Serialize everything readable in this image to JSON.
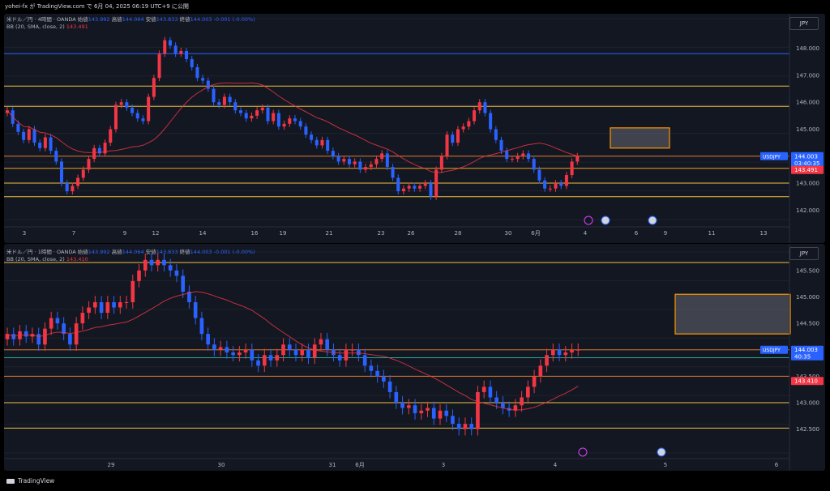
{
  "header": {
    "title": "yohei-fx が TradingView.com で 6月 04, 2025 06:19 UTC+9 に公開"
  },
  "footer": {
    "brand": "TradingView"
  },
  "chart_data": [
    {
      "type": "candlestick",
      "legend": {
        "symbol": "米ドル／円 · 4時間 · OANDA",
        "open_label": "始値",
        "open": "143.992",
        "high_label": "高値",
        "high": "144.064",
        "low_label": "安値",
        "low": "143.833",
        "close_label": "終値",
        "close": "144.003",
        "change": "-0.001 (-0.00%)",
        "bb_label": "BB (20, SMA, close, 2)",
        "bb_value": "143.491"
      },
      "currency": "JPY",
      "y_ticks": [
        148.0,
        147.0,
        146.0,
        145.0,
        143.0,
        142.0
      ],
      "y_tick_labels": [
        "148.000",
        "147.000",
        "146.000",
        "145.000",
        "143.000",
        "142.000"
      ],
      "ylim": [
        141.65,
        149.1
      ],
      "x_ticks": [
        "3",
        "7",
        "9",
        "12",
        "14",
        "16",
        "19",
        "21",
        "23",
        "26",
        "28",
        "30",
        "6月",
        "4",
        "6",
        "9",
        "11",
        "13"
      ],
      "price_label": {
        "symbol": "USDJPY",
        "price": "144.003",
        "countdown": "03:40:35",
        "bb": "143.491"
      },
      "horizontal_lines": [
        {
          "price": 147.8,
          "color": "#2962ff"
        },
        {
          "price": 146.6,
          "color": "#f0c040"
        },
        {
          "price": 145.85,
          "color": "#f0c040"
        },
        {
          "price": 144.0,
          "color": "#e07a30"
        },
        {
          "price": 143.55,
          "color": "#f0a020"
        },
        {
          "price": 143.0,
          "color": "#f0c040"
        },
        {
          "price": 142.5,
          "color": "#f0c040"
        }
      ],
      "target_zone": {
        "price_high": 145.05,
        "price_low": 144.3
      },
      "closes": [
        145.7,
        145.2,
        144.9,
        144.6,
        145.0,
        144.5,
        144.3,
        144.7,
        144.2,
        143.8,
        143.0,
        142.7,
        142.9,
        143.2,
        143.5,
        143.9,
        144.3,
        144.1,
        144.5,
        145.0,
        145.9,
        146.0,
        145.8,
        145.6,
        145.4,
        145.3,
        146.2,
        146.9,
        147.8,
        148.3,
        148.1,
        147.8,
        147.9,
        147.6,
        147.3,
        146.9,
        146.8,
        146.5,
        146.0,
        145.9,
        146.2,
        146.0,
        145.7,
        145.6,
        145.4,
        145.5,
        145.7,
        145.8,
        145.3,
        145.6,
        145.1,
        145.2,
        145.4,
        145.3,
        145.1,
        144.8,
        144.6,
        144.4,
        144.6,
        144.2,
        144.0,
        143.8,
        143.9,
        143.7,
        143.8,
        143.5,
        143.6,
        143.7,
        143.9,
        144.1,
        143.6,
        143.2,
        142.7,
        142.8,
        142.9,
        142.8,
        142.9,
        143.0,
        142.5,
        143.5,
        144.0,
        144.8,
        144.5,
        145.0,
        145.1,
        145.3,
        145.7,
        146.0,
        145.6,
        145.0,
        144.6,
        144.2,
        143.9,
        143.9,
        144.0,
        144.1,
        143.9,
        143.5,
        143.1,
        142.8,
        142.8,
        143.0,
        142.9,
        143.3,
        143.8,
        144.0
      ]
    },
    {
      "type": "candlestick",
      "legend": {
        "symbol": "米ドル／円 · 1時間 · OANDA",
        "open_label": "始値",
        "open": "143.992",
        "high_label": "高値",
        "high": "144.064",
        "low_label": "安値",
        "low": "143.833",
        "close_label": "終値",
        "close": "144.003",
        "change": "-0.001 (-0.00%)",
        "bb_label": "BB (20, SMA, close, 2)",
        "bb_value": "143.410"
      },
      "currency": "JPY",
      "y_ticks": [
        145.5,
        145.0,
        144.5,
        143.5,
        143.0,
        142.5
      ],
      "y_tick_labels": [
        "145.500",
        "145.000",
        "144.500",
        "143.500",
        "143.000",
        "142.500"
      ],
      "ylim": [
        142.05,
        145.85
      ],
      "x_ticks": [
        "29",
        "30",
        "31",
        "6月",
        "3",
        "4",
        "5",
        "6"
      ],
      "price_label": {
        "symbol": "USDJPY",
        "price": "144.003",
        "countdown": "40:35",
        "bb": "143.410"
      },
      "horizontal_lines": [
        {
          "price": 145.65,
          "color": "#f0c040"
        },
        {
          "price": 144.0,
          "color": "#e07a30"
        },
        {
          "price": 143.85,
          "color": "#26a69a"
        },
        {
          "price": 143.5,
          "color": "#e07a30"
        },
        {
          "price": 143.0,
          "color": "#f0c040"
        },
        {
          "price": 142.52,
          "color": "#f0c040"
        }
      ],
      "target_zone": {
        "price_high": 145.05,
        "price_low": 144.3
      },
      "closes": [
        144.3,
        144.2,
        144.35,
        144.25,
        144.3,
        144.1,
        144.4,
        144.6,
        144.5,
        144.3,
        144.1,
        144.5,
        144.7,
        144.8,
        144.9,
        144.7,
        144.9,
        144.8,
        144.9,
        144.9,
        145.3,
        145.5,
        145.7,
        145.6,
        145.7,
        145.6,
        145.5,
        145.4,
        145.1,
        144.9,
        144.6,
        144.3,
        144.1,
        144.0,
        144.05,
        143.95,
        143.9,
        143.95,
        144.0,
        143.8,
        143.7,
        143.9,
        143.8,
        143.9,
        144.1,
        144.0,
        143.9,
        144.0,
        143.85,
        144.1,
        144.2,
        144.0,
        143.9,
        143.8,
        144.0,
        144.0,
        143.9,
        143.7,
        143.6,
        143.5,
        143.4,
        143.2,
        143.0,
        142.9,
        142.95,
        142.8,
        142.85,
        142.9,
        142.7,
        142.85,
        142.75,
        142.6,
        142.5,
        142.6,
        142.5,
        143.2,
        143.3,
        143.1,
        143.0,
        142.9,
        142.85,
        142.95,
        143.1,
        143.3,
        143.5,
        143.7,
        143.9,
        144.0,
        143.9,
        143.95,
        144.0,
        144.0
      ]
    }
  ]
}
